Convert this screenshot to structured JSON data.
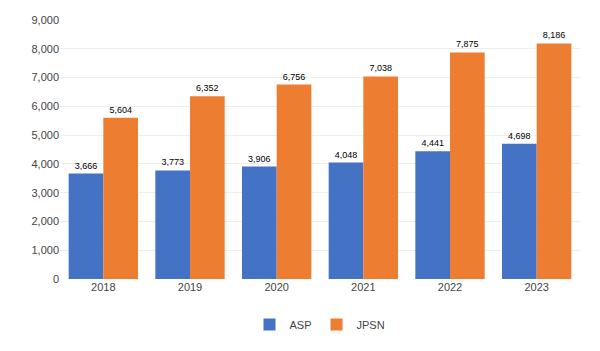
{
  "chart_data": {
    "type": "bar",
    "categories": [
      "2018",
      "2019",
      "2020",
      "2021",
      "2022",
      "2023"
    ],
    "series": [
      {
        "name": "ASP",
        "color": "#4472C4",
        "values": [
          3666,
          3773,
          3906,
          4048,
          4441,
          4698
        ],
        "value_labels": [
          "3,666",
          "3,773",
          "3,906",
          "4,048",
          "4,441",
          "4,698"
        ]
      },
      {
        "name": "JPSN",
        "color": "#ED7D31",
        "values": [
          5604,
          6352,
          6756,
          7038,
          7875,
          8186
        ],
        "value_labels": [
          "5,604",
          "6,352",
          "6,756",
          "7,038",
          "7,875",
          "8,186"
        ]
      }
    ],
    "ylim": [
      0,
      9000
    ],
    "yticks": [
      0,
      {
        "value": 1000,
        "label": "1,000"
      },
      {
        "value": 2000,
        "label": "2,000"
      },
      {
        "value": 3000,
        "label": "3,000"
      },
      {
        "value": 4000,
        "label": "4,000"
      },
      {
        "value": 5000,
        "label": "5,000"
      },
      {
        "value": 6000,
        "label": "6,000"
      },
      {
        "value": 7000,
        "label": "7,000"
      },
      {
        "value": 8000,
        "label": "8,000"
      },
      {
        "value": 9000,
        "label": "9,000"
      }
    ],
    "grid": true,
    "data_labels": true,
    "legend": "bottom"
  }
}
